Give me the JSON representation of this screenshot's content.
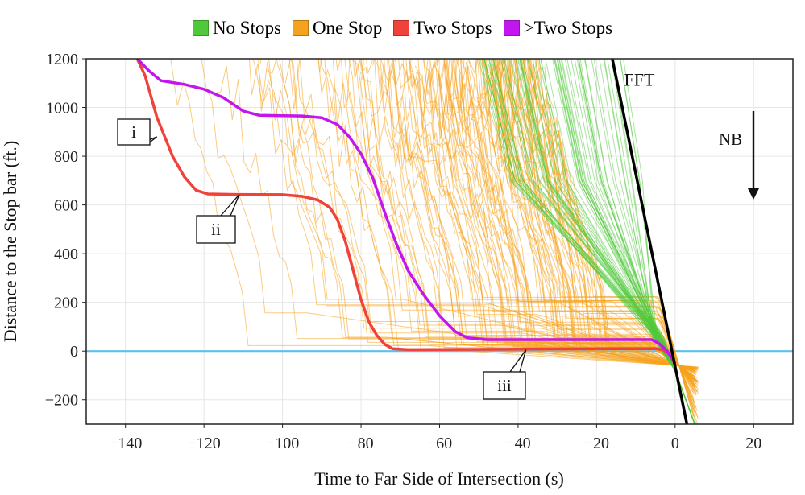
{
  "chart_data": {
    "type": "line",
    "xlabel": "Time to Far Side of Intersection (s)",
    "ylabel": "Distance to the Stop bar (ft.)",
    "xlim": [
      -150,
      30
    ],
    "ylim": [
      -300,
      1200
    ],
    "xticks": [
      -140,
      -120,
      -100,
      -80,
      -60,
      -40,
      -20,
      0,
      20
    ],
    "yticks": [
      -200,
      0,
      200,
      400,
      600,
      800,
      1000,
      1200
    ],
    "grid": true,
    "legend": {
      "placement": "top-center",
      "entries": [
        {
          "label": "No Stops",
          "color": "#4fc93a"
        },
        {
          "label": "One Stop",
          "color": "#f5a21e"
        },
        {
          "label": "Two Stops",
          "color": "#f0413a"
        },
        {
          "label": ">Two Stops",
          "color": "#c316ee"
        }
      ]
    },
    "reference_lines": [
      {
        "label": "",
        "y": 0,
        "color": "#5bc0eb"
      }
    ],
    "highlight_series": [
      {
        "category": "Two Stops",
        "color": "#f0413a",
        "points": [
          [
            -137,
            1200
          ],
          [
            -135,
            1130
          ],
          [
            -132,
            960
          ],
          [
            -130,
            880
          ],
          [
            -128,
            800
          ],
          [
            -125,
            715
          ],
          [
            -122,
            660
          ],
          [
            -119,
            645
          ],
          [
            -112,
            643
          ],
          [
            -100,
            642
          ],
          [
            -95,
            635
          ],
          [
            -91,
            620
          ],
          [
            -88,
            590
          ],
          [
            -86,
            540
          ],
          [
            -84,
            450
          ],
          [
            -82,
            330
          ],
          [
            -80,
            210
          ],
          [
            -78,
            120
          ],
          [
            -76,
            65
          ],
          [
            -74,
            28
          ],
          [
            -72,
            10
          ],
          [
            -68,
            6
          ],
          [
            -40,
            8
          ],
          [
            -10,
            10
          ],
          [
            -5,
            10
          ],
          [
            -3,
            5
          ],
          [
            -1,
            -20
          ],
          [
            0,
            -60
          ]
        ]
      },
      {
        "category": ">Two Stops",
        "color": "#c316ee",
        "points": [
          [
            -137,
            1200
          ],
          [
            -134,
            1150
          ],
          [
            -131,
            1110
          ],
          [
            -125,
            1095
          ],
          [
            -120,
            1075
          ],
          [
            -115,
            1040
          ],
          [
            -110,
            985
          ],
          [
            -106,
            968
          ],
          [
            -95,
            965
          ],
          [
            -90,
            958
          ],
          [
            -86,
            930
          ],
          [
            -83,
            880
          ],
          [
            -80,
            810
          ],
          [
            -77,
            710
          ],
          [
            -74,
            570
          ],
          [
            -71,
            440
          ],
          [
            -68,
            330
          ],
          [
            -64,
            230
          ],
          [
            -60,
            145
          ],
          [
            -56,
            80
          ],
          [
            -53,
            55
          ],
          [
            -48,
            47
          ],
          [
            -20,
            47
          ],
          [
            -6,
            47
          ],
          [
            -4,
            30
          ],
          [
            -2,
            0
          ],
          [
            0,
            -50
          ]
        ]
      }
    ],
    "ensemble_series": {
      "One Stop": {
        "count": 120,
        "color": "#f5a21e"
      },
      "No Stops": {
        "count": 70,
        "color": "#4fc93a"
      }
    },
    "annotations": {
      "fft_label": "FFT",
      "fft_line": [
        [
          -16,
          1200
        ],
        [
          3,
          -300
        ]
      ],
      "direction_label": "NB",
      "callouts": [
        {
          "text": "i",
          "points_to": [
            -132,
            880
          ]
        },
        {
          "text": "ii",
          "points_to": [
            -111,
            643
          ]
        },
        {
          "text": "iii",
          "points_to": [
            -38,
            5
          ]
        }
      ]
    }
  }
}
